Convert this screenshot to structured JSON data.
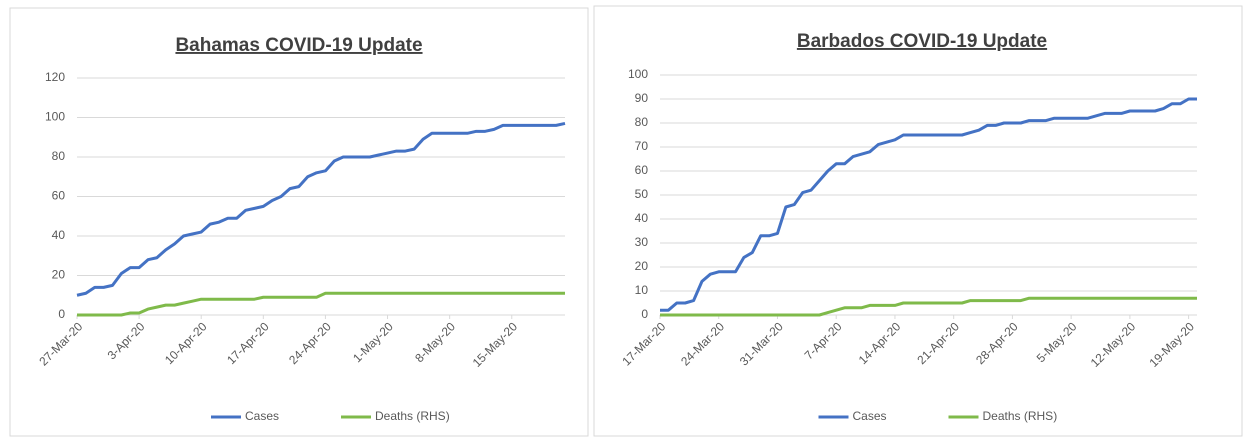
{
  "chart_data": [
    {
      "type": "line",
      "title": "Bahamas COVID-19 Update",
      "categories": [
        "27-Mar-20",
        null,
        null,
        null,
        null,
        null,
        null,
        "3-Apr-20",
        null,
        null,
        null,
        null,
        null,
        null,
        "10-Apr-20",
        null,
        null,
        null,
        null,
        null,
        null,
        "17-Apr-20",
        null,
        null,
        null,
        null,
        null,
        null,
        "24-Apr-20",
        null,
        null,
        null,
        null,
        null,
        null,
        "1-May-20",
        null,
        null,
        null,
        null,
        null,
        null,
        "8-May-20",
        null,
        null,
        null,
        null,
        null,
        null,
        "15-May-20",
        null,
        null,
        null,
        null,
        null,
        null
      ],
      "series": [
        {
          "name": "Cases",
          "color": "#4472c4",
          "values": [
            10,
            11,
            14,
            14,
            15,
            21,
            24,
            24,
            28,
            29,
            33,
            36,
            40,
            41,
            42,
            46,
            47,
            49,
            49,
            53,
            54,
            55,
            58,
            60,
            64,
            65,
            70,
            72,
            73,
            78,
            80,
            80,
            80,
            80,
            81,
            82,
            83,
            83,
            84,
            89,
            92,
            92,
            92,
            92,
            92,
            93,
            93,
            94,
            96,
            96,
            96,
            96,
            96,
            96,
            96,
            97
          ]
        },
        {
          "name": "Deaths (RHS)",
          "color": "#7fba4a",
          "values": [
            0,
            0,
            0,
            0,
            0,
            0,
            1,
            1,
            3,
            4,
            5,
            5,
            6,
            7,
            8,
            8,
            8,
            8,
            8,
            8,
            8,
            9,
            9,
            9,
            9,
            9,
            9,
            9,
            11,
            11,
            11,
            11,
            11,
            11,
            11,
            11,
            11,
            11,
            11,
            11,
            11,
            11,
            11,
            11,
            11,
            11,
            11,
            11,
            11,
            11,
            11,
            11,
            11,
            11,
            11,
            11
          ]
        }
      ],
      "ylim": [
        0,
        120
      ],
      "yticks": [
        0,
        20,
        40,
        60,
        80,
        100,
        120
      ],
      "grid": true,
      "legend": "bottom"
    },
    {
      "type": "line",
      "title": "Barbados COVID-19 Update",
      "categories": [
        "17-Mar-20",
        null,
        null,
        null,
        null,
        null,
        null,
        "24-Mar-20",
        null,
        null,
        null,
        null,
        null,
        null,
        "31-Mar-20",
        null,
        null,
        null,
        null,
        null,
        null,
        "7-Apr-20",
        null,
        null,
        null,
        null,
        null,
        null,
        "14-Apr-20",
        null,
        null,
        null,
        null,
        null,
        null,
        "21-Apr-20",
        null,
        null,
        null,
        null,
        null,
        null,
        "28-Apr-20",
        null,
        null,
        null,
        null,
        null,
        null,
        "5-May-20",
        null,
        null,
        null,
        null,
        null,
        null,
        "12-May-20",
        null,
        null,
        null,
        null,
        null,
        null,
        "19-May-20",
        null
      ],
      "series": [
        {
          "name": "Cases",
          "color": "#4472c4",
          "values": [
            2,
            2,
            5,
            5,
            6,
            14,
            17,
            18,
            18,
            18,
            24,
            26,
            33,
            33,
            34,
            45,
            46,
            51,
            52,
            56,
            60,
            63,
            63,
            66,
            67,
            68,
            71,
            72,
            73,
            75,
            75,
            75,
            75,
            75,
            75,
            75,
            75,
            76,
            77,
            79,
            79,
            80,
            80,
            80,
            81,
            81,
            81,
            82,
            82,
            82,
            82,
            82,
            83,
            84,
            84,
            84,
            85,
            85,
            85,
            85,
            86,
            88,
            88,
            90,
            90
          ]
        },
        {
          "name": "Deaths (RHS)",
          "color": "#7fba4a",
          "values": [
            0,
            0,
            0,
            0,
            0,
            0,
            0,
            0,
            0,
            0,
            0,
            0,
            0,
            0,
            0,
            0,
            0,
            0,
            0,
            0,
            1,
            2,
            3,
            3,
            3,
            4,
            4,
            4,
            4,
            5,
            5,
            5,
            5,
            5,
            5,
            5,
            5,
            6,
            6,
            6,
            6,
            6,
            6,
            6,
            7,
            7,
            7,
            7,
            7,
            7,
            7,
            7,
            7,
            7,
            7,
            7,
            7,
            7,
            7,
            7,
            7,
            7,
            7,
            7,
            7
          ]
        }
      ],
      "ylim": [
        0,
        100
      ],
      "yticks": [
        0,
        10,
        20,
        30,
        40,
        50,
        60,
        70,
        80,
        90,
        100
      ],
      "grid": true,
      "legend": "bottom"
    }
  ]
}
